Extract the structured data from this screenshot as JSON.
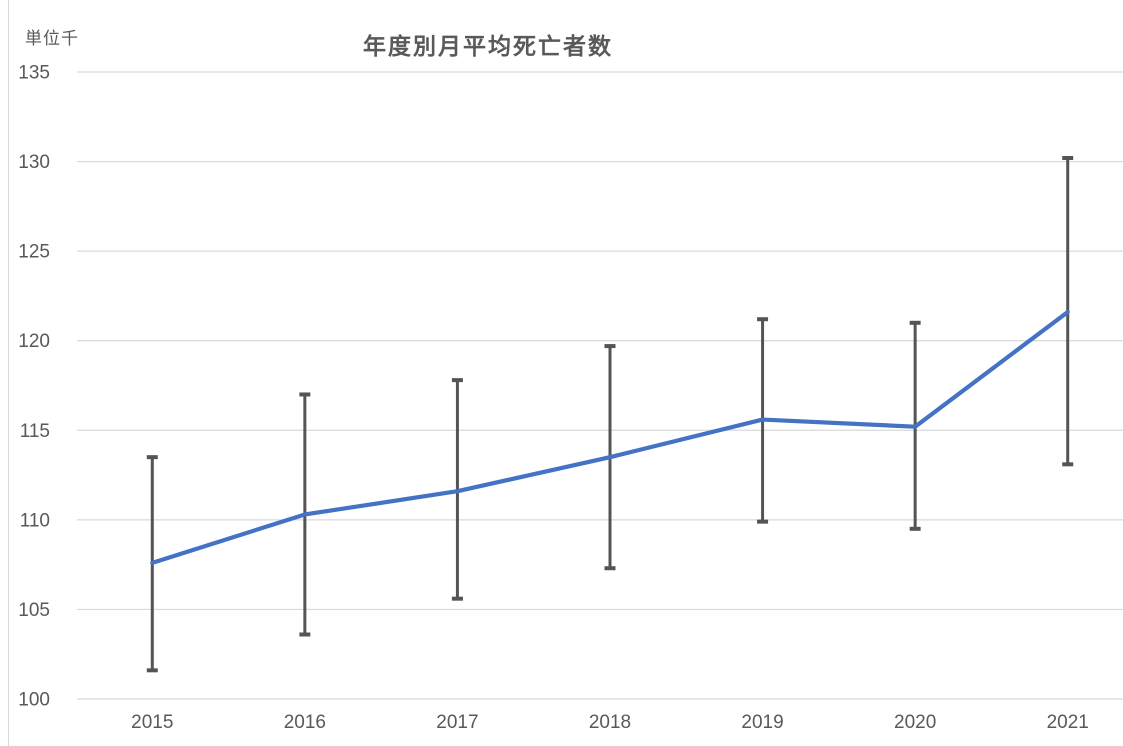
{
  "page": {
    "background": "#ffffff"
  },
  "chart_data": {
    "type": "line",
    "title": "年度別月平均死亡者数",
    "unit_label": "単位千",
    "categories": [
      "2015",
      "2016",
      "2017",
      "2018",
      "2019",
      "2020",
      "2021"
    ],
    "values": [
      107.6,
      110.3,
      111.6,
      113.5,
      115.6,
      115.2,
      121.6
    ],
    "error_upper": [
      113.5,
      117.0,
      117.8,
      119.7,
      121.2,
      121.0,
      130.2
    ],
    "error_lower": [
      101.6,
      103.6,
      105.6,
      107.3,
      109.9,
      109.5,
      113.1
    ],
    "xlabel": "",
    "ylabel": "単位千",
    "ylim": [
      100,
      135
    ],
    "yticks": [
      100,
      105,
      110,
      115,
      120,
      125,
      130,
      135
    ],
    "grid": "horizontal",
    "legend": "none",
    "markers": "none",
    "colors": {
      "line": "#4472C4",
      "error_bar": "#545454",
      "gridline": "#d9d9d9",
      "axis_text": "#595959",
      "title_text": "#595959"
    }
  }
}
